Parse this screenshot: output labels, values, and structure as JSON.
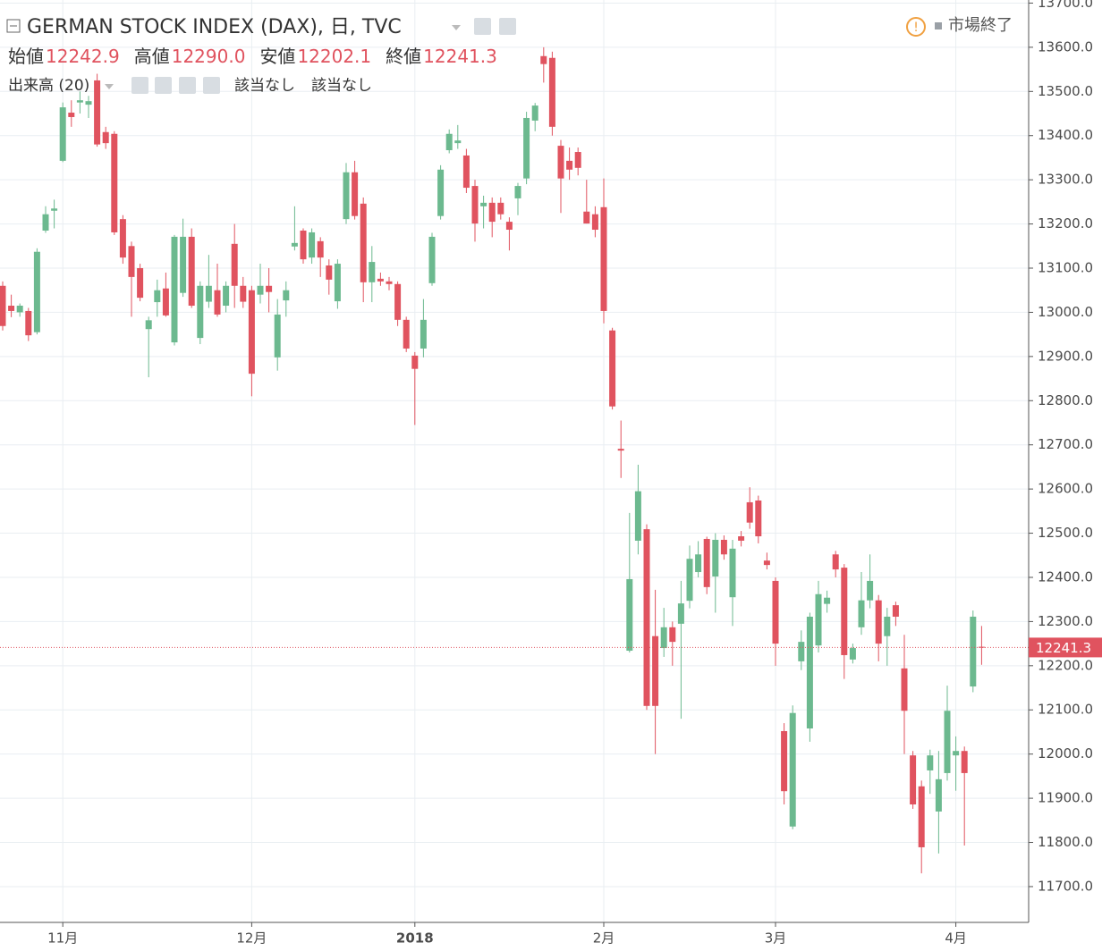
{
  "chart_data": {
    "type": "candlestick",
    "title": "GERMAN STOCK INDEX (DAX), 日, TVC",
    "status": "市場終了",
    "ohlc_header": [
      {
        "name": "始値",
        "label": "12242.9"
      },
      {
        "name": "高値",
        "label": "12290.0"
      },
      {
        "name": "安値",
        "label": "12202.1"
      },
      {
        "name": "終値",
        "label": "12241.3"
      }
    ],
    "indicator": {
      "name": "出来高 (20)",
      "values": [
        "該当なし",
        "該当なし"
      ]
    },
    "last_price": {
      "value": 12241.3,
      "label": "12241.3"
    },
    "up_color": "#6cb98f",
    "down_color": "#e0535f",
    "grid": true,
    "ylim": [
      11623,
      13707
    ],
    "yticks": [
      {
        "value": 11700,
        "label": "11700.0"
      },
      {
        "value": 11800,
        "label": "11800.0"
      },
      {
        "value": 11900,
        "label": "11900.0"
      },
      {
        "value": 12000,
        "label": "12000.0"
      },
      {
        "value": 12100,
        "label": "12100.0"
      },
      {
        "value": 12200,
        "label": "12200.0"
      },
      {
        "value": 12300,
        "label": "12300.0"
      },
      {
        "value": 12400,
        "label": "12400.0"
      },
      {
        "value": 12500,
        "label": "12500.0"
      },
      {
        "value": 12600,
        "label": "12600.0"
      },
      {
        "value": 12700,
        "label": "12700.0"
      },
      {
        "value": 12800,
        "label": "12800.0"
      },
      {
        "value": 12900,
        "label": "12900.0"
      },
      {
        "value": 13000,
        "label": "13000.0"
      },
      {
        "value": 13100,
        "label": "13100.0"
      },
      {
        "value": 13200,
        "label": "13200.0"
      },
      {
        "value": 13300,
        "label": "13300.0"
      },
      {
        "value": 13400,
        "label": "13400.0"
      },
      {
        "value": 13500,
        "label": "13500.0"
      },
      {
        "value": 13600,
        "label": "13600.0"
      },
      {
        "value": 13700,
        "label": "13700.0"
      }
    ],
    "categories": [
      null,
      null,
      null,
      null,
      null,
      null,
      null,
      "11月",
      null,
      null,
      null,
      null,
      null,
      null,
      null,
      null,
      null,
      null,
      null,
      null,
      null,
      null,
      null,
      null,
      null,
      null,
      null,
      null,
      null,
      "12月",
      null,
      null,
      null,
      null,
      null,
      null,
      null,
      null,
      null,
      null,
      null,
      null,
      null,
      null,
      null,
      null,
      null,
      null,
      "2018",
      null,
      null,
      null,
      null,
      null,
      null,
      null,
      null,
      null,
      null,
      null,
      null,
      null,
      null,
      null,
      null,
      null,
      null,
      null,
      null,
      null,
      "2月",
      null,
      null,
      null,
      null,
      null,
      null,
      null,
      null,
      null,
      null,
      null,
      null,
      null,
      null,
      null,
      null,
      null,
      null,
      null,
      "3月",
      null,
      null,
      null,
      null,
      null,
      null,
      null,
      null,
      null,
      null,
      null,
      null,
      null,
      null,
      null,
      null,
      null,
      null,
      null,
      null,
      "4月",
      null,
      null,
      null
    ],
    "open": [
      13060,
      13015,
      13000,
      13003,
      12955,
      13185,
      13230,
      13343,
      13452,
      13475,
      13470,
      13525,
      13408,
      13404,
      13211,
      13150,
      13100,
      12962,
      13023,
      13054,
      12932,
      13044,
      13171,
      12942,
      13024,
      13050,
      13015,
      13155,
      13060,
      13050,
      13040,
      13060,
      12898,
      13027,
      13149,
      13185,
      13124,
      13161,
      13106,
      13025,
      13211,
      13317,
      13246,
      13068,
      13076,
      13070,
      13064,
      12983,
      12902,
      12918,
      13066,
      13218,
      13367,
      13383,
      13355,
      13286,
      13240,
      13248,
      13248,
      13205,
      13258,
      13303,
      13434,
      13580,
      13576,
      13377,
      13343,
      13363,
      13228,
      13222,
      13238,
      12959,
      12691,
      12234,
      12483,
      12509,
      12267,
      12240,
      12287,
      12295,
      12347,
      12412,
      12487,
      12402,
      12485,
      12355,
      12493,
      12570,
      12574,
      12438,
      12392,
      12052,
      11836,
      12210,
      12058,
      12246,
      12340,
      12452,
      12422,
      12214,
      12287,
      12348,
      12348,
      12267,
      12337,
      12194,
      11997,
      11927,
      11963,
      11870,
      11957,
      11997,
      12007,
      12153,
      12242.9
    ],
    "high": [
      13070,
      13040,
      13020,
      13010,
      13145,
      13240,
      13255,
      13475,
      13480,
      13500,
      13490,
      13540,
      13420,
      13410,
      13220,
      13160,
      13110,
      12990,
      13074,
      13090,
      13175,
      13212,
      13190,
      13070,
      13130,
      13110,
      13070,
      13200,
      13080,
      13060,
      13110,
      13100,
      13030,
      13070,
      13240,
      13190,
      13190,
      13170,
      13120,
      13120,
      13338,
      13343,
      13260,
      13150,
      13090,
      13080,
      13070,
      12990,
      12910,
      13030,
      13180,
      13333,
      13414,
      13424,
      13370,
      13300,
      13264,
      13260,
      13260,
      13215,
      13293,
      13454,
      13474,
      13600,
      13590,
      13390,
      13373,
      13373,
      13300,
      13240,
      13303,
      12965,
      12755,
      12546,
      12655,
      12520,
      12372,
      12331,
      12300,
      12392,
      12472,
      12482,
      12492,
      12500,
      12495,
      12485,
      12505,
      12604,
      12585,
      12456,
      12400,
      12070,
      12110,
      12280,
      12320,
      12392,
      12370,
      12460,
      12430,
      12250,
      12412,
      12452,
      12360,
      12331,
      12345,
      12270,
      12007,
      11940,
      12010,
      12007,
      12155,
      12040,
      12017,
      12325,
      12290
    ],
    "low": [
      12959,
      12989,
      12990,
      12935,
      12950,
      13180,
      13190,
      13340,
      13420,
      13450,
      13440,
      13375,
      13370,
      13175,
      13110,
      12990,
      13025,
      12853,
      12990,
      12990,
      12925,
      13035,
      13010,
      12928,
      13010,
      12990,
      13000,
      13010,
      13010,
      12810,
      13020,
      13000,
      12868,
      12990,
      13140,
      13110,
      13110,
      13080,
      13040,
      13008,
      13200,
      13210,
      13023,
      13023,
      13060,
      13050,
      12969,
      12910,
      12745,
      12898,
      13060,
      13210,
      13360,
      13370,
      13270,
      13160,
      13190,
      13170,
      13210,
      13140,
      13220,
      13290,
      13410,
      13520,
      13400,
      13225,
      13300,
      13310,
      13201,
      13170,
      12975,
      12780,
      12625,
      12230,
      12452,
      12100,
      12000,
      12220,
      12200,
      12080,
      12330,
      12400,
      12362,
      12320,
      12440,
      12290,
      12470,
      12510,
      12477,
      12418,
      12200,
      11886,
      11830,
      12190,
      12028,
      12230,
      12320,
      12400,
      12170,
      12205,
      12270,
      12330,
      12210,
      12200,
      12290,
      12000,
      11876,
      11730,
      11910,
      11775,
      11940,
      11917,
      11793,
      12140,
      12202.1
    ],
    "close": [
      12969,
      13003,
      13015,
      12948,
      13137,
      13222,
      13235,
      13464,
      13442,
      13480,
      13478,
      13380,
      13383,
      13181,
      13124,
      13080,
      13033,
      12982,
      13050,
      12993,
      13171,
      13171,
      13015,
      13060,
      13060,
      12995,
      13060,
      13060,
      13024,
      12861,
      13060,
      13046,
      12995,
      13050,
      13157,
      13120,
      13181,
      13124,
      13074,
      13110,
      13317,
      13218,
      13068,
      13114,
      13070,
      13064,
      12983,
      12918,
      12872,
      12983,
      13171,
      13323,
      13404,
      13389,
      13282,
      13201,
      13248,
      13205,
      13222,
      13187,
      13286,
      13440,
      13468,
      13562,
      13420,
      13303,
      13323,
      13327,
      13201,
      13187,
      13003,
      12787,
      12687,
      12396,
      12595,
      12109,
      12109,
      12287,
      12254,
      12341,
      12442,
      12452,
      12378,
      12485,
      12452,
      12465,
      12483,
      12524,
      12493,
      12428,
      12250,
      11916,
      12093,
      12254,
      12311,
      12362,
      12354,
      12418,
      12224,
      12240,
      12348,
      12392,
      12250,
      12311,
      12311,
      12098,
      11886,
      11789,
      11997,
      11943,
      12098,
      12007,
      11957,
      12311,
      12241.3
    ]
  }
}
